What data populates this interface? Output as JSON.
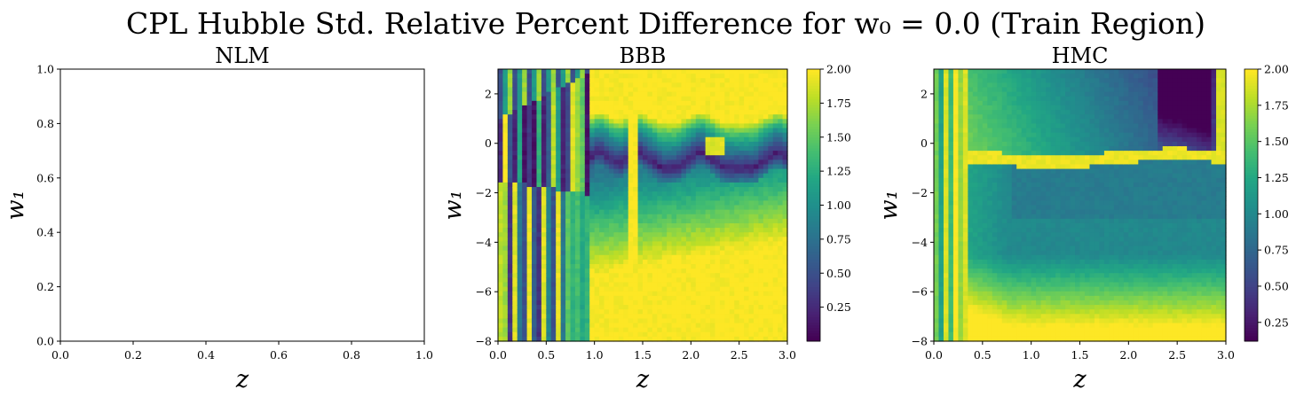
{
  "figure": {
    "title": "CPL Hubble Std. Relative Percent Difference for w₀ = 0.0 (Train Region)"
  },
  "chart_data": [
    {
      "type": "heatmap",
      "title": "NLM",
      "xlabel": "z",
      "ylabel": "w₁",
      "xlim": [
        0.0,
        1.0
      ],
      "ylim": [
        0.0,
        1.0
      ],
      "xticks": [
        "0.0",
        "0.2",
        "0.4",
        "0.6",
        "0.8",
        "1.0"
      ],
      "yticks": [
        "0.0",
        "0.2",
        "0.4",
        "0.6",
        "0.8",
        "1.0"
      ],
      "values": [],
      "colorbar": null
    },
    {
      "type": "heatmap",
      "title": "BBB",
      "xlabel": "z",
      "ylabel": "w₁",
      "xlim": [
        0.0,
        3.0
      ],
      "ylim": [
        -8,
        3
      ],
      "xticks": [
        "0.0",
        "0.5",
        "1.0",
        "1.5",
        "2.0",
        "2.5",
        "3.0"
      ],
      "yticks": [
        "−8",
        "−6",
        "−4",
        "−2",
        "0",
        "2"
      ],
      "colormap": "viridis",
      "grid": {
        "nx": 60,
        "ny": 60
      },
      "pattern": "bbb",
      "colorbar": {
        "min": 0.0,
        "max": 2.0,
        "ticks": [
          0.25,
          0.5,
          0.75,
          1.0,
          1.25,
          1.5,
          1.75,
          2.0
        ],
        "tick_labels": [
          "0.25",
          "0.50",
          "0.75",
          "1.00",
          "1.25",
          "1.50",
          "1.75",
          "2.00"
        ]
      }
    },
    {
      "type": "heatmap",
      "title": "HMC",
      "xlabel": "z",
      "ylabel": "w₁",
      "xlim": [
        0.0,
        3.0
      ],
      "ylim": [
        -8,
        3
      ],
      "xticks": [
        "0.0",
        "0.5",
        "1.0",
        "1.5",
        "2.0",
        "2.5",
        "3.0"
      ],
      "yticks": [
        "−8",
        "−6",
        "−4",
        "−2",
        "0",
        "2"
      ],
      "colormap": "viridis",
      "grid": {
        "nx": 60,
        "ny": 60
      },
      "pattern": "hmc",
      "colorbar": {
        "min": 0.12,
        "max": 2.0,
        "ticks": [
          0.25,
          0.5,
          0.75,
          1.0,
          1.25,
          1.5,
          1.75,
          2.0
        ],
        "tick_labels": [
          "0.25",
          "0.50",
          "0.75",
          "1.00",
          "1.25",
          "1.50",
          "1.75",
          "2.00"
        ]
      }
    }
  ]
}
